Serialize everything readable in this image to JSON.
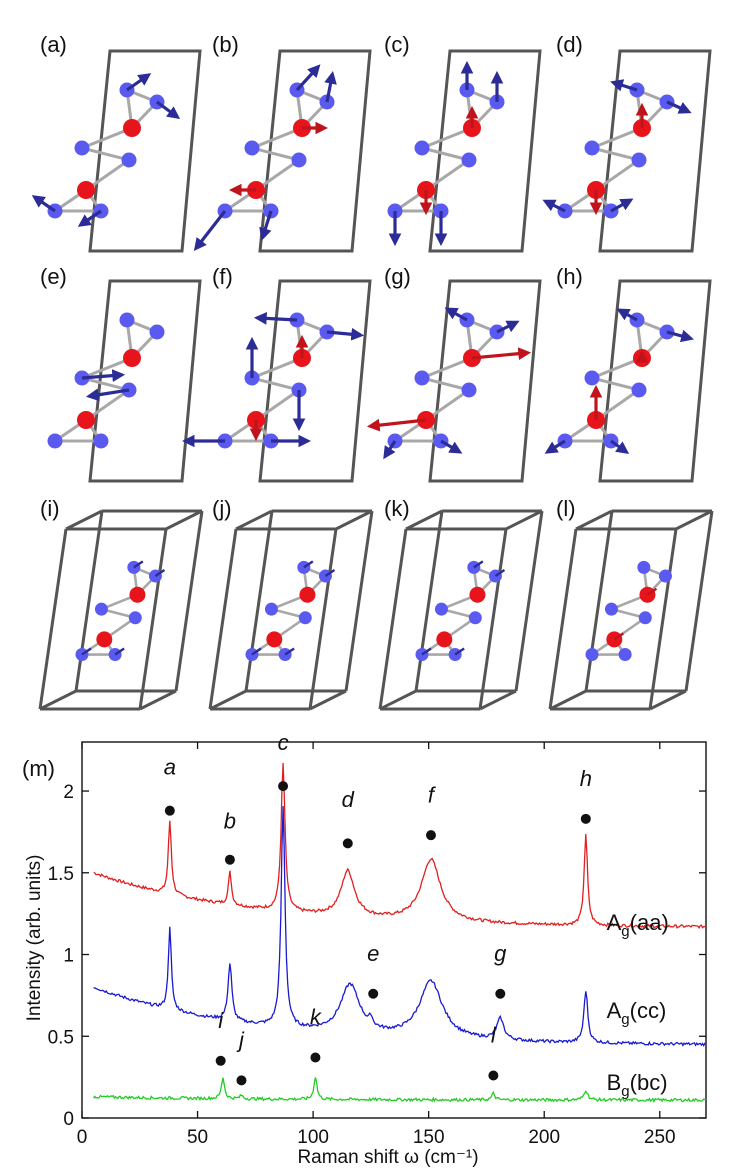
{
  "panels": [
    {
      "label": "(a)"
    },
    {
      "label": "(b)"
    },
    {
      "label": "(c)"
    },
    {
      "label": "(d)"
    },
    {
      "label": "(e)"
    },
    {
      "label": "(f)"
    },
    {
      "label": "(g)"
    },
    {
      "label": "(h)"
    },
    {
      "label": "(i)"
    },
    {
      "label": "(j)"
    },
    {
      "label": "(k)"
    },
    {
      "label": "(l)"
    }
  ],
  "colors": {
    "cation": "#e8141c",
    "anion": "#5a5af0",
    "arrow_blue": "#2c2c96",
    "arrow_red": "#c0141c",
    "cell": "#555555",
    "bond": "#a8a8a8"
  },
  "chart_data": {
    "type": "line",
    "panel_label": "(m)",
    "title": "",
    "xlabel": "Raman shift ω (cm⁻¹)",
    "ylabel": "Intensity (arb. units)",
    "xlim": [
      0,
      270
    ],
    "ylim": [
      0,
      2.3
    ],
    "x_ticks": [
      0,
      50,
      100,
      150,
      200,
      250
    ],
    "x_tick_labels": [
      "0",
      "50",
      "100",
      "150",
      "200",
      "250"
    ],
    "y_ticks": [
      0,
      0.5,
      1,
      1.5,
      2
    ],
    "y_tick_labels": [
      "0",
      "0.5",
      "1",
      "1.5",
      "2"
    ],
    "series": [
      {
        "name": "Ag(aa)",
        "label_main": "A",
        "label_sub": "g",
        "label_tail": "(aa)",
        "color": "#e02020",
        "baseline_start": 1.5,
        "baseline_end": 1.17,
        "peaks": [
          {
            "x": 38,
            "height": 0.45,
            "width": 0.8
          },
          {
            "x": 64,
            "height": 0.2,
            "width": 0.8
          },
          {
            "x": 87,
            "height": 0.9,
            "width": 1.0
          },
          {
            "x": 115,
            "height": 0.28,
            "width": 3.5
          },
          {
            "x": 151,
            "height": 0.38,
            "width": 5
          },
          {
            "x": 218,
            "height": 0.55,
            "width": 0.9
          }
        ]
      },
      {
        "name": "Ag(cc)",
        "label_main": "A",
        "label_sub": "g",
        "label_tail": "(cc)",
        "color": "#1a1ad0",
        "baseline_start": 0.8,
        "baseline_end": 0.45,
        "peaks": [
          {
            "x": 38,
            "height": 0.5,
            "width": 0.8
          },
          {
            "x": 64,
            "height": 0.35,
            "width": 1.0
          },
          {
            "x": 87,
            "height": 1.35,
            "width": 1.0
          },
          {
            "x": 116,
            "height": 0.3,
            "width": 5
          },
          {
            "x": 125,
            "height": 0.05,
            "width": 0.8
          },
          {
            "x": 151,
            "height": 0.35,
            "width": 6
          },
          {
            "x": 181,
            "height": 0.13,
            "width": 1.8
          },
          {
            "x": 218,
            "height": 0.32,
            "width": 1.0
          }
        ]
      },
      {
        "name": "Bg(bc)",
        "label_main": "B",
        "label_sub": "g",
        "label_tail": "(bc)",
        "color": "#22cc22",
        "baseline_start": 0.13,
        "baseline_end": 0.11,
        "peaks": [
          {
            "x": 61,
            "height": 0.13,
            "width": 0.8
          },
          {
            "x": 69,
            "height": 0.02,
            "width": 0.8
          },
          {
            "x": 101,
            "height": 0.14,
            "width": 0.8
          },
          {
            "x": 178,
            "height": 0.04,
            "width": 0.8
          },
          {
            "x": 218,
            "height": 0.06,
            "width": 1.0
          }
        ]
      }
    ],
    "annotations": [
      {
        "text": "a",
        "x": 38,
        "y": 1.88,
        "label_y": 2.15
      },
      {
        "text": "b",
        "x": 64,
        "y": 1.58,
        "label_y": 1.82
      },
      {
        "text": "c",
        "x": 87,
        "y": 2.03,
        "label_y": 2.3
      },
      {
        "text": "d",
        "x": 115,
        "y": 1.68,
        "label_y": 1.95
      },
      {
        "text": "e",
        "x": 126,
        "y": 0.76,
        "label_y": 1.01
      },
      {
        "text": "f",
        "x": 151,
        "y": 1.73,
        "label_y": 1.98
      },
      {
        "text": "g",
        "x": 181,
        "y": 0.76,
        "label_y": 1.01
      },
      {
        "text": "h",
        "x": 218,
        "y": 1.83,
        "label_y": 2.08
      },
      {
        "text": "i",
        "x": 60,
        "y": 0.35,
        "label_y": 0.6
      },
      {
        "text": "j",
        "x": 69,
        "y": 0.23,
        "label_y": 0.48
      },
      {
        "text": "k",
        "x": 101,
        "y": 0.37,
        "label_y": 0.62
      },
      {
        "text": "l",
        "x": 178,
        "y": 0.26,
        "label_y": 0.51
      }
    ]
  }
}
